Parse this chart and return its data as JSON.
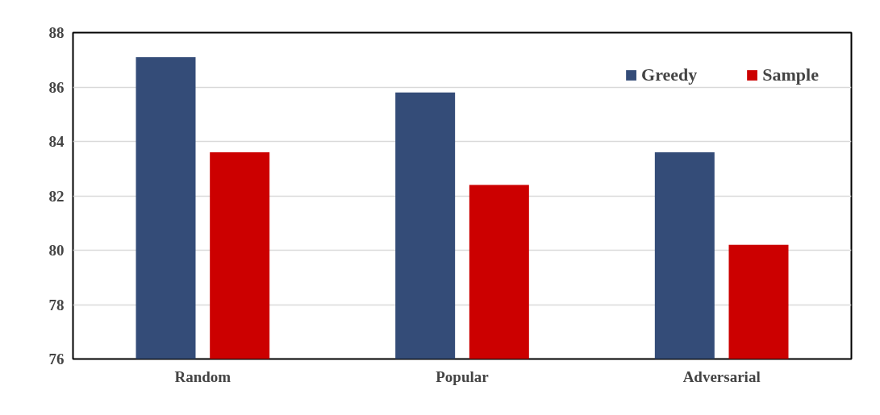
{
  "chart_data": {
    "type": "bar",
    "categories": [
      "Random",
      "Popular",
      "Adversarial"
    ],
    "series": [
      {
        "name": "Greedy",
        "color": "#344c78",
        "values": [
          87.1,
          85.8,
          83.6
        ]
      },
      {
        "name": "Sample",
        "color": "#cc0000",
        "values": [
          83.6,
          82.4,
          80.2
        ]
      }
    ],
    "ylim": [
      76,
      88
    ],
    "yticks": [
      76,
      78,
      80,
      82,
      84,
      86,
      88
    ],
    "grid": "y",
    "legend": "top right"
  }
}
